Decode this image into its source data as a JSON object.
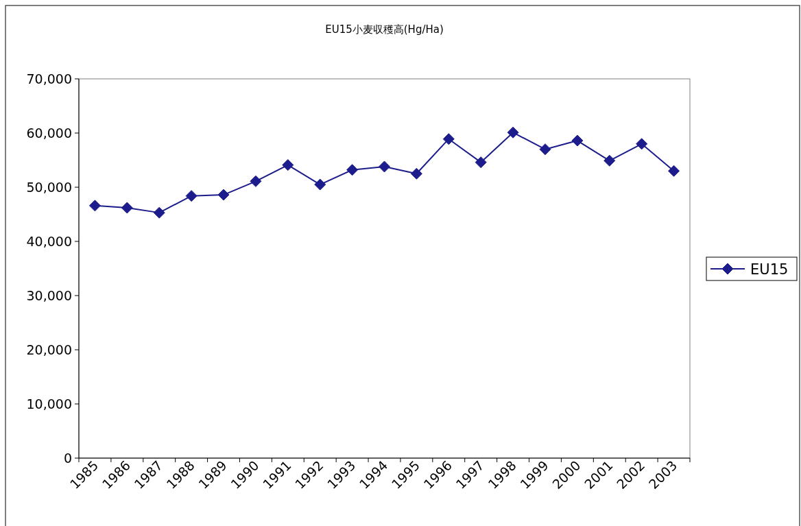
{
  "chart_data": {
    "type": "line",
    "title": "EU15小麦収穫高(Hg/Ha)",
    "categories": [
      "1985",
      "1986",
      "1987",
      "1988",
      "1989",
      "1990",
      "1991",
      "1992",
      "1993",
      "1994",
      "1995",
      "1996",
      "1997",
      "1998",
      "1999",
      "2000",
      "2001",
      "2002",
      "2003"
    ],
    "series": [
      {
        "name": "EU15",
        "color": "#1c1c8c",
        "values": [
          46600,
          46200,
          45300,
          48400,
          48600,
          51100,
          54100,
          50500,
          53200,
          53800,
          52500,
          58900,
          54600,
          60100,
          57000,
          58600,
          54900,
          58000,
          53000
        ]
      }
    ],
    "ylim": [
      0,
      70000
    ],
    "yticks": [
      {
        "value": 0,
        "label": "0"
      },
      {
        "value": 10000,
        "label": "10,000"
      },
      {
        "value": 20000,
        "label": "20,000"
      },
      {
        "value": 30000,
        "label": "30,000"
      },
      {
        "value": 40000,
        "label": "40,000"
      },
      {
        "value": 50000,
        "label": "50,000"
      },
      {
        "value": 60000,
        "label": "60,000"
      },
      {
        "value": 70000,
        "label": "70,000"
      }
    ],
    "grid": false,
    "legend": "right",
    "marker": "diamond",
    "line_style": "solid"
  }
}
